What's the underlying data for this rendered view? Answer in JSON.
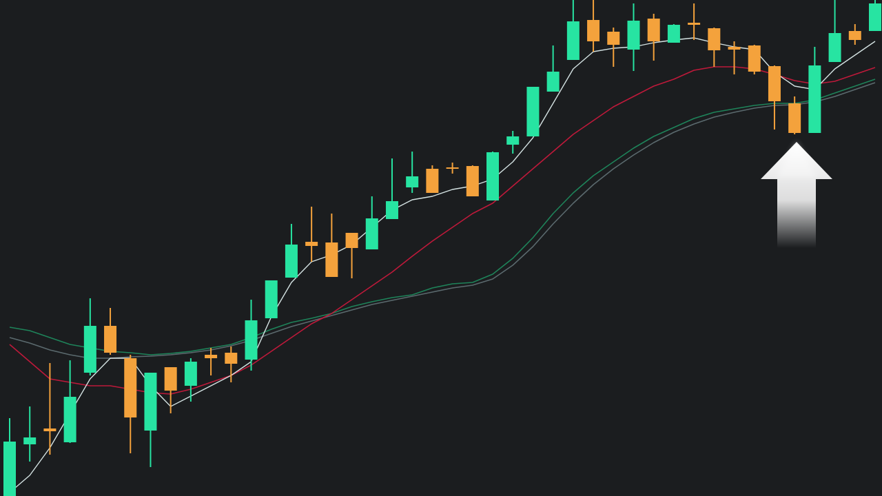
{
  "chart_data": {
    "type": "candlestick",
    "categories": [
      null,
      null,
      null,
      null,
      null,
      null,
      null,
      null,
      null,
      null,
      null,
      null,
      null,
      null,
      null,
      null,
      null,
      null,
      null,
      null,
      null,
      null,
      null,
      null,
      null,
      null,
      null,
      null,
      null,
      null,
      null,
      null,
      null,
      null,
      null,
      null,
      null,
      null,
      null,
      null,
      null,
      null,
      null,
      null
    ],
    "open": [
      0,
      75,
      98,
      78,
      179,
      247,
      200,
      95,
      187,
      160,
      205,
      208,
      198,
      258,
      317,
      369,
      368,
      382,
      358,
      402,
      448,
      475,
      477,
      479,
      429,
      510,
      522,
      587,
      633,
      691,
      674,
      648,
      693,
      658,
      687,
      679,
      652,
      654,
      624,
      570,
      527,
      630,
      675,
      675
    ],
    "high": [
      113,
      130,
      193,
      197,
      287,
      273,
      205,
      179,
      187,
      200,
      215,
      217,
      285,
      313,
      395,
      420,
      410,
      382,
      435,
      490,
      500,
      480,
      484,
      480,
      500,
      530,
      594,
      654,
      720,
      720,
      680,
      715,
      700,
      685,
      715,
      680,
      660,
      655,
      625,
      580,
      652,
      720,
      685,
      720
    ],
    "low": [
      0,
      50,
      60,
      77,
      175,
      205,
      62,
      42,
      120,
      137,
      175,
      165,
      182,
      258,
      317,
      340,
      318,
      316,
      358,
      402,
      440,
      440,
      468,
      435,
      429,
      497,
      522,
      587,
      633,
      645,
      623,
      617,
      632,
      658,
      662,
      623,
      612,
      612,
      532,
      525,
      527,
      630,
      655,
      675
    ],
    "close": [
      79,
      85,
      94,
      144,
      247,
      208,
      114,
      179,
      153,
      195,
      200,
      192,
      255,
      313,
      365,
      363,
      318,
      360,
      403,
      428,
      464,
      440,
      475,
      435,
      499,
      522,
      594,
      616,
      689,
      660,
      655,
      690,
      660,
      684,
      684,
      647,
      648,
      616,
      573,
      527,
      625,
      672,
      662,
      715
    ],
    "up_color": "#27e4a2",
    "down_color": "#f4a23c",
    "ylim": [
      0,
      720
    ],
    "series": [
      {
        "color": "#5f6f73",
        "values": [
          230,
          222,
          212,
          205,
          200,
          200,
          202,
          203,
          205,
          208,
          212,
          218,
          226,
          236,
          246,
          254,
          262,
          270,
          278,
          284,
          290,
          296,
          302,
          306,
          315,
          335,
          362,
          395,
          425,
          452,
          475,
          495,
          513,
          528,
          540,
          550,
          557,
          563,
          567,
          568,
          572,
          580,
          590,
          600
        ]
      },
      {
        "color": "#1f8a5e",
        "values": [
          245,
          240,
          230,
          220,
          215,
          210,
          208,
          205,
          207,
          210,
          215,
          220,
          230,
          242,
          252,
          258,
          265,
          275,
          282,
          288,
          292,
          302,
          308,
          310,
          322,
          345,
          375,
          410,
          440,
          465,
          485,
          505,
          522,
          535,
          548,
          557,
          562,
          567,
          570,
          570,
          575,
          585,
          595,
          605
        ]
      },
      {
        "color": "#c8193c",
        "values": [
          220,
          195,
          170,
          165,
          160,
          160,
          155,
          150,
          148,
          155,
          165,
          175,
          190,
          210,
          230,
          250,
          265,
          285,
          305,
          325,
          348,
          370,
          390,
          410,
          425,
          450,
          475,
          500,
          525,
          545,
          565,
          580,
          595,
          605,
          618,
          623,
          623,
          620,
          612,
          603,
          598,
          602,
          612,
          622
        ]
      },
      {
        "color": "#dfeeee",
        "values": [
          5,
          30,
          70,
          120,
          170,
          200,
          200,
          160,
          130,
          145,
          160,
          175,
          195,
          260,
          310,
          340,
          350,
          365,
          390,
          415,
          430,
          435,
          445,
          450,
          460,
          485,
          520,
          570,
          620,
          645,
          650,
          652,
          658,
          662,
          665,
          658,
          652,
          648,
          615,
          595,
          590,
          620,
          640,
          660
        ]
      }
    ]
  }
}
